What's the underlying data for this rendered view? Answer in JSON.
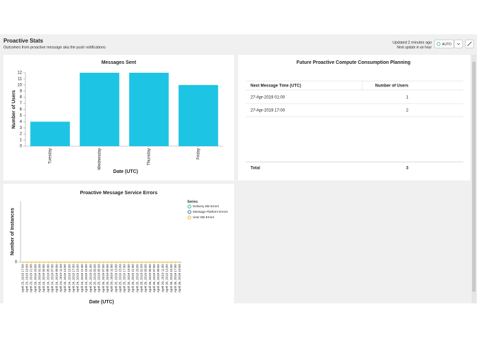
{
  "header": {
    "title": "Proactive Stats",
    "subtitle": "Outcomes from proactive message aka the push notifications",
    "updated": "Updated 2 minutes ago",
    "next_update": "Next update in an hour",
    "auto_button": "AUTO"
  },
  "chart_data": [
    {
      "type": "bar",
      "title": "Messages Sent",
      "x_label": "Date (UTC)",
      "y_label": "Number of Users",
      "categories": [
        "Tuesday",
        "Wednesday",
        "Thursday",
        "Friday"
      ],
      "values": [
        4,
        12,
        12,
        10
      ],
      "color": "#1ec4e4",
      "ylim": [
        0,
        12
      ],
      "yticks": [
        0,
        1,
        2,
        3,
        4,
        5,
        6,
        7,
        8,
        9,
        10,
        11,
        12
      ]
    },
    {
      "type": "line",
      "title": "Proactive Message Service Errors",
      "x_label": "Date (UTC)",
      "y_label": "Number of Instances",
      "legend_title": "Series",
      "categories": [
        "April 23, 2019 17:00",
        "April 23, 2019 19:00",
        "April 23, 2019 21:00",
        "April 23, 2019 23:00",
        "April 24, 2019 01:00",
        "April 24, 2019 03:00",
        "April 24, 2019 05:00",
        "April 24, 2019 07:00",
        "April 24, 2019 09:00",
        "April 24, 2019 11:00",
        "April 24, 2019 13:00",
        "April 24, 2019 15:00",
        "April 24, 2019 17:00",
        "April 24, 2019 19:00",
        "April 24, 2019 21:00",
        "April 24, 2019 23:00",
        "April 25, 2019 01:00",
        "April 25, 2019 03:00",
        "April 25, 2019 05:00",
        "April 25, 2019 07:00",
        "April 25, 2019 09:00",
        "April 25, 2019 11:00",
        "April 25, 2019 13:00",
        "April 25, 2019 15:00",
        "April 25, 2019 17:00",
        "April 25, 2019 19:00",
        "April 25, 2019 21:00",
        "April 25, 2019 23:00",
        "April 26, 2019 01:00",
        "April 26, 2019 03:00",
        "April 26, 2019 05:00",
        "April 26, 2019 07:00",
        "April 26, 2019 09:00",
        "April 26, 2019 11:00",
        "April 26, 2019 13:00",
        "April 26, 2019 15:00",
        "April 26, 2019 17:00",
        "April 26, 2019 19:00"
      ],
      "series": [
        {
          "name": "Delivery DB Errors",
          "color": "#2bb673",
          "values": [
            0,
            0,
            0,
            0,
            0,
            0,
            0,
            0,
            0,
            0,
            0,
            0,
            0,
            0,
            0,
            0,
            0,
            0,
            0,
            0,
            0,
            0,
            0,
            0,
            0,
            0,
            0,
            0,
            0,
            0,
            0,
            0,
            0,
            0,
            0,
            0,
            0,
            0
          ]
        },
        {
          "name": "Message Platform Errors",
          "color": "#2a6ebb",
          "values": [
            0,
            0,
            0,
            0,
            0,
            0,
            0,
            0,
            0,
            0,
            0,
            0,
            0,
            0,
            0,
            0,
            0,
            0,
            0,
            0,
            0,
            0,
            0,
            0,
            0,
            0,
            0,
            0,
            0,
            0,
            0,
            0,
            0,
            0,
            0,
            0,
            0,
            0
          ]
        },
        {
          "name": "User DB Errors",
          "color": "#e8b41c",
          "values": [
            0,
            0,
            0,
            0,
            0,
            0,
            0,
            0,
            0,
            0,
            0,
            0,
            0,
            0,
            0,
            0,
            0,
            0,
            0,
            0,
            0,
            0,
            0,
            0,
            0,
            0,
            0,
            0,
            0,
            0,
            0,
            0,
            0,
            0,
            0,
            0,
            0,
            0
          ]
        }
      ],
      "ylim": [
        0,
        1
      ],
      "yticks": [
        0
      ]
    }
  ],
  "table": {
    "title": "Future Proactive Compute Consumption Planning",
    "columns": [
      "Next Message Time (UTC)",
      "Number of Users"
    ],
    "rows": [
      [
        "27-Apr-2019 01:00",
        1
      ],
      [
        "27-Apr-2019 17:00",
        2
      ]
    ],
    "total": [
      "Total",
      3
    ]
  }
}
